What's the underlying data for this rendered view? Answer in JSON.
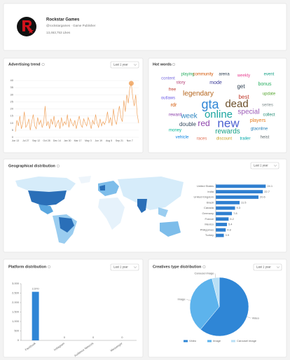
{
  "profile": {
    "name": "Rockstar Games",
    "handle": "@rockstargames · Game Publisher",
    "likes": "13,463,753 Likes"
  },
  "hot_words": {
    "title": "Hot words",
    "words": [
      {
        "text": "gta",
        "color": "#2f86d6"
      },
      {
        "text": "dead",
        "color": "#6b4f2a"
      },
      {
        "text": "online",
        "color": "#1aa5a0"
      },
      {
        "text": "red",
        "color": "#8e44ad"
      },
      {
        "text": "new",
        "color": "#4a5fd0"
      },
      {
        "text": "week",
        "color": "#2e86c1"
      },
      {
        "text": "legendary",
        "color": "#b5651d"
      },
      {
        "text": "rewards",
        "color": "#16a085"
      },
      {
        "text": "special",
        "color": "#9b59b6"
      },
      {
        "text": "double",
        "color": "#34495e"
      },
      {
        "text": "best",
        "color": "#c0392b"
      },
      {
        "text": "get",
        "color": "#2c3e50"
      },
      {
        "text": "bonus",
        "color": "#27ae60"
      },
      {
        "text": "rdr",
        "color": "#d35400"
      },
      {
        "text": "series",
        "color": "#7f8c8d"
      },
      {
        "text": "players",
        "color": "#e67e22"
      },
      {
        "text": "gtaonline",
        "color": "#2980b9"
      },
      {
        "text": "reward",
        "color": "#8e44ad"
      },
      {
        "text": "free",
        "color": "#c0392b"
      },
      {
        "text": "event",
        "color": "#16a085"
      },
      {
        "text": "playing",
        "color": "#27ae60"
      },
      {
        "text": "community",
        "color": "#d35400"
      },
      {
        "text": "arena",
        "color": "#2c3e50"
      },
      {
        "text": "weekly",
        "color": "#e84393"
      },
      {
        "text": "outlaws",
        "color": "#6c5ce7"
      },
      {
        "text": "money",
        "color": "#00b894"
      },
      {
        "text": "vehicle",
        "color": "#0984e3"
      },
      {
        "text": "races",
        "color": "#e17055"
      },
      {
        "text": "discount",
        "color": "#c9a227"
      },
      {
        "text": "trailer",
        "color": "#00a8a8"
      },
      {
        "text": "heist",
        "color": "#636e72"
      },
      {
        "text": "content",
        "color": "#7d6fe0"
      },
      {
        "text": "update",
        "color": "#55a630"
      },
      {
        "text": "story",
        "color": "#b33771"
      },
      {
        "text": "mode",
        "color": "#3b3b98"
      },
      {
        "text": "collect",
        "color": "#218c74"
      }
    ]
  },
  "chart_data": [
    {
      "type": "line",
      "title": "Advertising trend",
      "period": "Last 1 year",
      "color": "#f0a35e",
      "grid": true,
      "categories": [
        "Jun 13",
        null,
        null,
        null,
        null,
        null,
        null,
        "Jul 27",
        null,
        null,
        null,
        null,
        null,
        null,
        "Sep 12",
        null,
        null,
        null,
        null,
        null,
        null,
        "Oct 28",
        null,
        null,
        null,
        null,
        null,
        null,
        "Dec 14",
        null,
        null,
        null,
        null,
        null,
        null,
        "Jan 30",
        null,
        null,
        null,
        null,
        null,
        null,
        "Mar 17",
        null,
        null,
        null,
        null,
        null,
        null,
        "May 3",
        null,
        null,
        null,
        null,
        null,
        null,
        "Jun 19",
        null,
        null,
        null,
        null,
        null,
        null,
        "Aug 5",
        null,
        null,
        null,
        null,
        null,
        null,
        "Sep 21",
        null,
        null,
        null,
        null,
        null,
        null,
        "Nov 7",
        null,
        null,
        null,
        null,
        null,
        null
      ],
      "values": [
        4,
        12,
        8,
        15,
        6,
        10,
        18,
        7,
        9,
        13,
        5,
        11,
        16,
        8,
        6,
        14,
        9,
        12,
        7,
        10,
        22,
        8,
        11,
        6,
        13,
        9,
        15,
        7,
        10,
        12,
        6,
        14,
        8,
        11,
        9,
        16,
        7,
        13,
        10,
        8,
        12,
        6,
        11,
        15,
        9,
        7,
        13,
        10,
        8,
        14,
        11,
        6,
        12,
        9,
        16,
        10,
        7,
        13,
        8,
        11,
        9,
        12,
        18,
        10,
        14,
        8,
        20,
        12,
        9,
        16,
        22,
        14,
        11,
        26,
        18,
        30,
        24,
        35,
        38,
        28,
        22,
        30,
        16,
        10
      ],
      "ylim": [
        0,
        40
      ],
      "yticks": [
        0,
        5,
        10,
        15,
        20,
        25,
        30,
        35,
        40
      ]
    },
    {
      "type": "hbar",
      "title": "Geographical distribution",
      "period": "Last 1 year",
      "color": "#2f7fd0",
      "categories": [
        "United States",
        "India",
        "United Kingdom",
        "Brazil",
        "Canada",
        "Germany",
        "France",
        "Mexico",
        "Philippines",
        "Turkey"
      ],
      "values": [
        24.1,
        22.7,
        20.6,
        11.5,
        9.3,
        7.8,
        6.2,
        5.4,
        4.8,
        3.9
      ],
      "xlim": [
        0,
        25
      ]
    },
    {
      "type": "bar",
      "title": "Platform distribution",
      "period": "Last 1 year",
      "color": "#2f86d6",
      "categories": [
        "Facebook",
        "Instagram",
        "Audience Network",
        "Messenger"
      ],
      "values": [
        2570,
        0,
        0,
        0
      ],
      "value_labels": [
        "2,570",
        "0",
        "0",
        "0"
      ],
      "ylim": [
        0,
        3000
      ],
      "yticks": [
        0,
        500,
        {
          "value": 1000,
          "label": "1,000"
        },
        {
          "value": 1500,
          "label": "1,500"
        },
        {
          "value": 2000,
          "label": "2,000"
        },
        {
          "value": 2500,
          "label": "2,500"
        },
        {
          "value": 3000,
          "label": "3,000"
        }
      ]
    },
    {
      "type": "pie",
      "title": "Creatives type distribution",
      "period": "Last 1 year",
      "categories": [
        "Video",
        "Image",
        "Carousel image"
      ],
      "values": [
        61,
        35,
        4
      ],
      "colors": [
        "#2f86d6",
        "#5db3ec",
        "#b9dff5"
      ]
    }
  ]
}
